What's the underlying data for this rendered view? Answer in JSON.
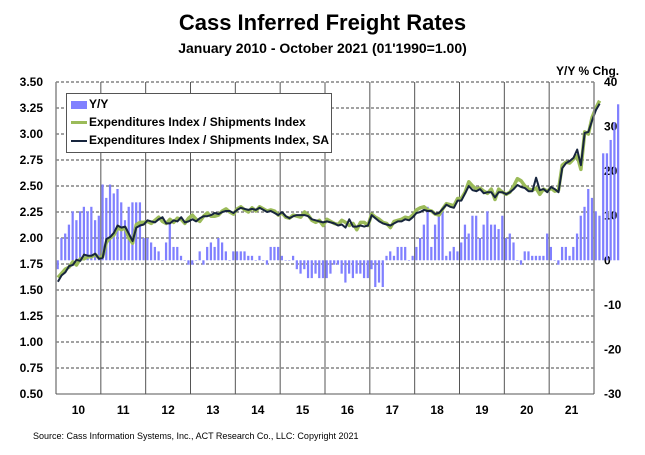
{
  "chart_data": {
    "type": "bar+line",
    "title": "Cass Inferred Freight Rates",
    "subtitle": "January 2010 - October 2021 (01'1990=1.00)",
    "y2label": "Y/Y % Chg.",
    "source": "Source: Cass Information Systems, Inc., ACT Research Co., LLC: Copyright 2021",
    "ylim": [
      0.5,
      3.5
    ],
    "y2lim": [
      -30,
      40
    ],
    "yticks": [
      "3.50",
      "3.25",
      "3.00",
      "2.75",
      "2.50",
      "2.25",
      "2.00",
      "1.75",
      "1.50",
      "1.25",
      "1.00",
      "0.75",
      "0.50"
    ],
    "y2ticks": [
      "40",
      "30",
      "20",
      "10",
      "0",
      "-10",
      "-20",
      "-30"
    ],
    "xticks": [
      "10",
      "11",
      "12",
      "13",
      "14",
      "15",
      "16",
      "17",
      "18",
      "19",
      "20",
      "21"
    ],
    "grid": true,
    "legend_position": "top-left",
    "colors": {
      "yy": "#8080ff",
      "index": "#9bbb59",
      "sa": "#17253d"
    },
    "series": [
      {
        "name": "Y/Y",
        "kind": "bar",
        "values": [
          -2,
          5,
          6,
          8,
          11,
          9,
          11,
          12,
          11,
          12,
          9,
          10,
          17,
          14,
          17,
          15,
          16,
          13,
          9,
          12,
          13,
          13,
          13,
          5,
          5,
          4,
          3,
          2,
          0,
          4,
          9,
          3,
          3,
          1,
          0,
          -1,
          -1,
          0,
          2,
          -1,
          3,
          4,
          3,
          5,
          4,
          2,
          0,
          2,
          2,
          2,
          2,
          1,
          1,
          0,
          1,
          0,
          -1,
          3,
          3,
          3,
          1,
          0,
          0,
          1,
          -2,
          -3,
          -2,
          -4,
          -4,
          -3,
          -4,
          -4,
          -4,
          -3,
          -1,
          -1,
          -3,
          -5,
          -3,
          -4,
          -3,
          -3,
          -4,
          -4,
          -2,
          -6,
          -5,
          -6,
          1,
          2,
          1,
          3,
          3,
          3,
          0,
          1,
          3,
          5,
          8,
          12,
          3,
          8,
          10,
          11,
          1,
          2,
          3,
          2,
          4,
          8,
          6,
          10,
          10,
          5,
          8,
          11,
          8,
          8,
          7,
          10,
          5,
          6,
          4,
          0,
          -1,
          2,
          2,
          1,
          1,
          1,
          1,
          6,
          3,
          0,
          -1,
          3,
          3,
          1,
          3,
          6,
          10,
          12,
          16,
          14,
          11,
          10,
          24,
          24,
          27,
          31,
          35
        ],
        "y2": true
      },
      {
        "name": "Expenditures Index / Shipments Index",
        "kind": "line",
        "values": [
          1.62,
          1.66,
          1.7,
          1.72,
          1.77,
          1.74,
          1.8,
          1.8,
          1.82,
          1.82,
          1.84,
          1.81,
          1.82,
          1.96,
          2.0,
          2.03,
          2.1,
          2.08,
          2.1,
          2.0,
          1.95,
          2.13,
          2.15,
          2.15,
          2.16,
          2.14,
          2.17,
          2.2,
          2.16,
          2.14,
          2.18,
          2.15,
          2.19,
          2.18,
          2.14,
          2.19,
          2.22,
          2.18,
          2.16,
          2.21,
          2.24,
          2.21,
          2.21,
          2.22,
          2.26,
          2.28,
          2.25,
          2.23,
          2.28,
          2.3,
          2.27,
          2.25,
          2.29,
          2.26,
          2.3,
          2.28,
          2.26,
          2.27,
          2.26,
          2.22,
          2.24,
          2.2,
          2.19,
          2.22,
          2.21,
          2.2,
          2.25,
          2.22,
          2.17,
          2.15,
          2.17,
          2.12,
          2.18,
          2.16,
          2.14,
          2.13,
          2.17,
          2.15,
          2.12,
          2.14,
          2.08,
          2.15,
          2.15,
          2.12,
          2.23,
          2.2,
          2.18,
          2.15,
          2.14,
          2.1,
          2.16,
          2.17,
          2.18,
          2.2,
          2.19,
          2.22,
          2.27,
          2.29,
          2.3,
          2.27,
          2.26,
          2.23,
          2.22,
          2.28,
          2.33,
          2.32,
          2.31,
          2.38,
          2.38,
          2.44,
          2.54,
          2.5,
          2.47,
          2.48,
          2.45,
          2.43,
          2.47,
          2.37,
          2.47,
          2.44,
          2.42,
          2.44,
          2.5,
          2.57,
          2.55,
          2.5,
          2.47,
          2.46,
          2.48,
          2.42,
          2.47,
          2.45,
          2.48,
          2.45,
          2.46,
          2.7,
          2.73,
          2.72,
          2.76,
          2.79,
          2.66,
          3.02,
          3.0,
          3.16,
          3.25,
          3.32
        ]
      },
      {
        "name": "Expenditures Index / Shipments Index, SA",
        "kind": "line",
        "values": [
          1.58,
          1.64,
          1.67,
          1.73,
          1.74,
          1.79,
          1.78,
          1.84,
          1.83,
          1.83,
          1.85,
          1.8,
          1.81,
          1.99,
          2.01,
          2.05,
          2.12,
          2.1,
          2.11,
          2.04,
          1.97,
          2.1,
          2.12,
          2.13,
          2.17,
          2.16,
          2.15,
          2.18,
          2.2,
          2.14,
          2.14,
          2.17,
          2.16,
          2.2,
          2.15,
          2.16,
          2.18,
          2.16,
          2.19,
          2.21,
          2.21,
          2.22,
          2.24,
          2.23,
          2.25,
          2.26,
          2.26,
          2.24,
          2.27,
          2.29,
          2.28,
          2.27,
          2.28,
          2.27,
          2.29,
          2.27,
          2.25,
          2.26,
          2.24,
          2.22,
          2.25,
          2.21,
          2.19,
          2.21,
          2.22,
          2.22,
          2.22,
          2.21,
          2.18,
          2.17,
          2.16,
          2.15,
          2.16,
          2.15,
          2.14,
          2.12,
          2.13,
          2.1,
          2.18,
          2.11,
          2.11,
          2.12,
          2.11,
          2.12,
          2.22,
          2.19,
          2.16,
          2.14,
          2.13,
          2.12,
          2.14,
          2.16,
          2.16,
          2.18,
          2.17,
          2.2,
          2.24,
          2.25,
          2.27,
          2.26,
          2.26,
          2.23,
          2.24,
          2.28,
          2.32,
          2.3,
          2.29,
          2.36,
          2.36,
          2.43,
          2.5,
          2.46,
          2.45,
          2.47,
          2.43,
          2.44,
          2.44,
          2.39,
          2.44,
          2.44,
          2.42,
          2.44,
          2.47,
          2.51,
          2.49,
          2.48,
          2.45,
          2.45,
          2.58,
          2.46,
          2.47,
          2.44,
          2.49,
          2.47,
          2.44,
          2.67,
          2.72,
          2.74,
          2.77,
          2.85,
          2.7,
          3.01,
          3.02,
          3.13,
          3.23,
          3.29
        ]
      }
    ]
  },
  "legend": {
    "items": [
      "Y/Y",
      "Expenditures Index / Shipments Index",
      "Expenditures Index / Shipments Index, SA"
    ]
  }
}
